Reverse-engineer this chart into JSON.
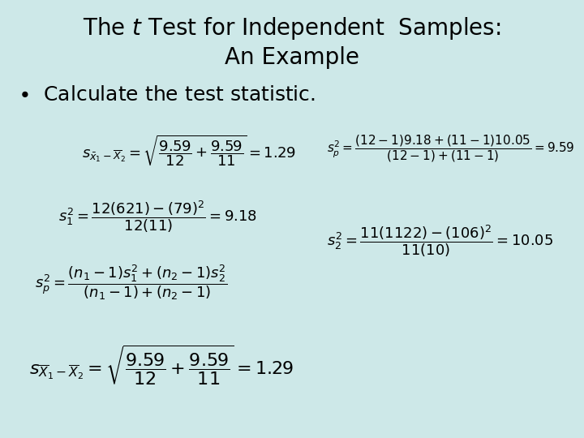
{
  "background_color": "#cde8e8",
  "title_fontsize": 20,
  "bullet_fontsize": 18,
  "formula_fontsize": 13,
  "formula_fontsize_large": 16,
  "fig_width": 7.2,
  "fig_height": 5.4
}
